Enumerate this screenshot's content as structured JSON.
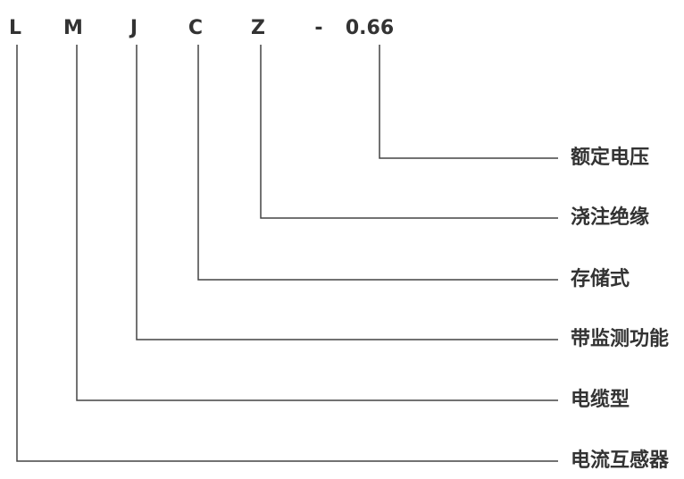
{
  "code": {
    "parts": [
      "L",
      "M",
      "J",
      "C",
      "Z",
      "-",
      "0.66"
    ]
  },
  "meanings": [
    "额定电压",
    "浇注绝缘",
    "存储式",
    "带监测功能",
    "电缆型",
    "电流互感器"
  ]
}
